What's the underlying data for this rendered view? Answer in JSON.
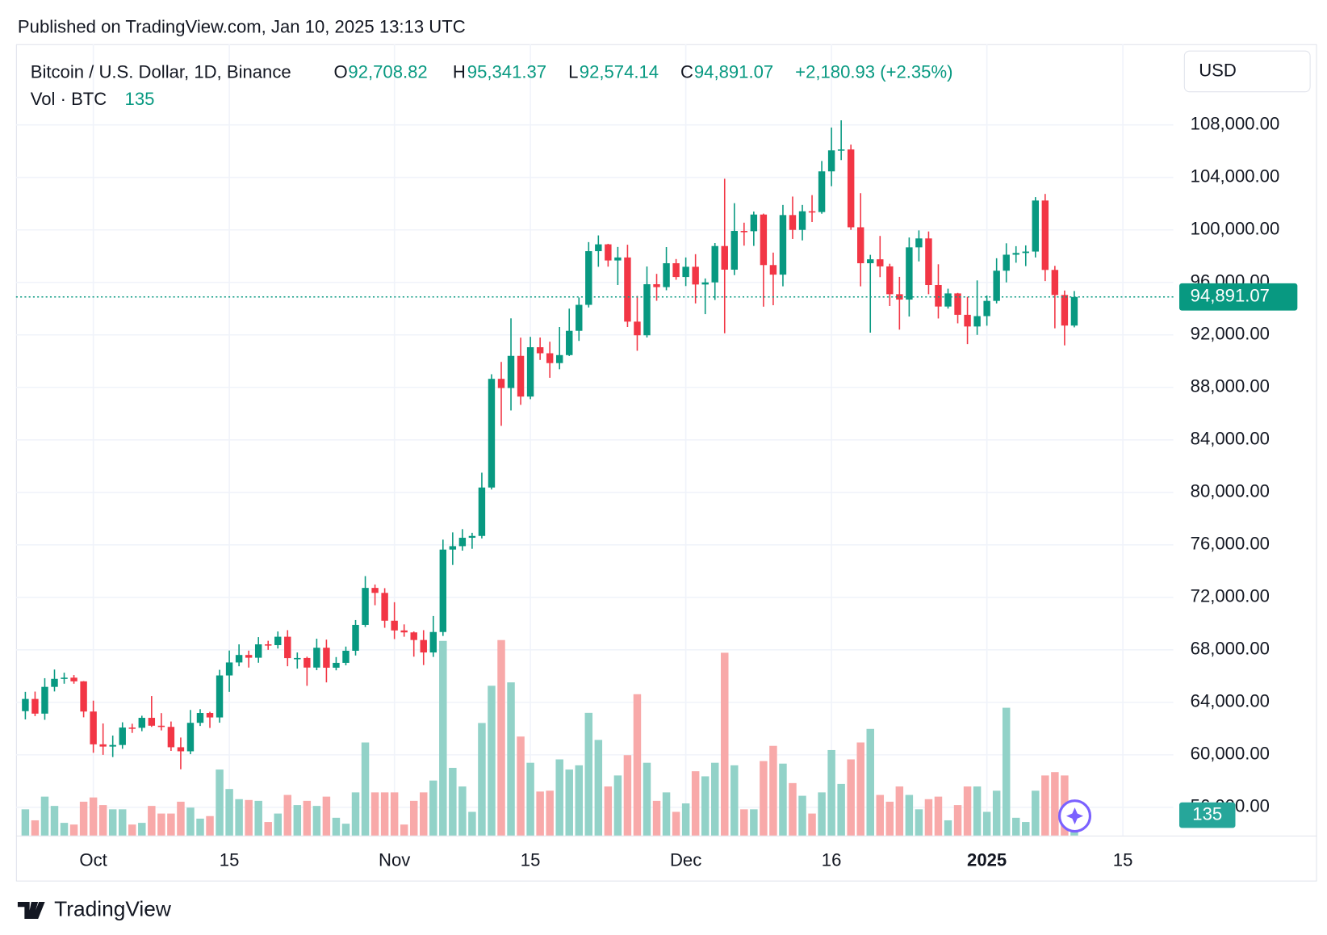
{
  "chart_data": {
    "type": "candlestick",
    "header": "Published on TradingView.com, Jan 10, 2025 13:13 UTC",
    "title": "Bitcoin / U.S. Dollar, 1D, Binance",
    "currency": "USD",
    "ohlc_legend": [
      {
        "key": "O",
        "value": "92,708.82"
      },
      {
        "key": "H",
        "value": "95,341.37"
      },
      {
        "key": "L",
        "value": "92,574.14"
      },
      {
        "key": "C",
        "value": "94,891.07"
      }
    ],
    "change": "+2,180.93 (+2.35%)",
    "up_color": "#089981",
    "down_color": "#f23645",
    "grid": true,
    "categories": [
      null,
      null,
      null,
      null,
      null,
      null,
      null,
      "Oct",
      null,
      null,
      null,
      null,
      null,
      null,
      null,
      null,
      null,
      null,
      null,
      null,
      null,
      "15",
      null,
      null,
      null,
      null,
      null,
      null,
      null,
      null,
      null,
      null,
      null,
      null,
      null,
      null,
      null,
      null,
      "Nov",
      null,
      null,
      null,
      null,
      null,
      null,
      null,
      null,
      null,
      null,
      null,
      null,
      null,
      "15",
      null,
      null,
      null,
      null,
      null,
      null,
      null,
      null,
      null,
      null,
      null,
      null,
      null,
      null,
      null,
      "Dec",
      null,
      null,
      null,
      null,
      null,
      null,
      null,
      null,
      null,
      null,
      null,
      null,
      null,
      null,
      "16",
      null,
      null,
      null,
      null,
      null,
      null,
      null,
      null,
      null,
      null,
      null,
      null,
      null,
      null,
      null,
      "2025",
      null,
      null,
      null,
      null,
      null,
      null,
      null,
      null,
      null,
      null,
      null,
      null,
      null,
      "15",
      null,
      null,
      null,
      null,
      null
    ],
    "open": [
      63330,
      64260,
      63140,
      65180,
      65790,
      65880,
      65600,
      63300,
      60800,
      60630,
      60750,
      62080,
      62060,
      62820,
      62220,
      62130,
      60580,
      60270,
      62440,
      63190,
      62850,
      66050,
      67040,
      67610,
      67400,
      68420,
      68360,
      69000,
      67370,
      67380,
      66650,
      68160,
      66640,
      67010,
      67930,
      69900,
      72720,
      72340,
      70220,
      69480,
      69330,
      68750,
      67800,
      69360,
      75640,
      75900,
      76540,
      76680,
      80370,
      88650,
      87950,
      90400,
      87300,
      91060,
      90600,
      89850,
      90460,
      92310,
      94290,
      98380,
      98900,
      97670,
      97900,
      93010,
      91970,
      95860,
      95640,
      97460,
      96410,
      97190,
      95840,
      96000,
      98770,
      96970,
      99920,
      99900,
      101170,
      97320,
      96590,
      101130,
      100000,
      101420,
      101360,
      104460,
      106060,
      106130,
      100200,
      97460,
      97760,
      97220,
      95100,
      94690,
      98670,
      99350,
      95800,
      94160,
      95160,
      93530,
      92640,
      93430,
      94590,
      96890,
      98110,
      98240,
      98350,
      102240,
      96950,
      95040,
      92708.82,
      null,
      null,
      null,
      null,
      null,
      null,
      null,
      null,
      null,
      null
    ],
    "high": [
      64800,
      64820,
      65840,
      66500,
      66260,
      66080,
      65620,
      64130,
      62390,
      61470,
      62480,
      62370,
      62980,
      64480,
      63180,
      62540,
      61320,
      63420,
      63480,
      63280,
      66480,
      67950,
      68420,
      67940,
      68970,
      68690,
      69400,
      69500,
      67800,
      67480,
      68850,
      68780,
      67450,
      68250,
      70270,
      73620,
      72980,
      72700,
      71630,
      69940,
      69400,
      69500,
      70580,
      76400,
      76950,
      77200,
      76920,
      81500,
      89000,
      89940,
      93260,
      91790,
      91850,
      91800,
      91480,
      92600,
      94000,
      94850,
      99070,
      99580,
      98940,
      98700,
      98870,
      94970,
      97210,
      96650,
      98690,
      97780,
      97900,
      98150,
      96300,
      99000,
      103900,
      102040,
      100550,
      101400,
      101240,
      98270,
      101900,
      102540,
      101900,
      102650,
      105250,
      107800,
      108350,
      106500,
      102800,
      98100,
      99540,
      97420,
      96420,
      99420,
      99960,
      99880,
      97380,
      95520,
      95200,
      94900,
      96150,
      95000,
      97840,
      98980,
      98760,
      98820,
      102500,
      102740,
      97260,
      95380,
      95341.37,
      null,
      null,
      null,
      null,
      null,
      null,
      null,
      null,
      null,
      null
    ],
    "low": [
      62700,
      62950,
      62670,
      64830,
      65420,
      65420,
      62860,
      60160,
      60000,
      59830,
      60460,
      61670,
      61800,
      62130,
      61860,
      60300,
      58900,
      60050,
      62200,
      62050,
      62450,
      64800,
      66750,
      66650,
      67020,
      68000,
      68100,
      66750,
      66570,
      65260,
      66450,
      65520,
      66440,
      66820,
      67570,
      69740,
      71400,
      69680,
      68820,
      69000,
      67480,
      66840,
      67460,
      69060,
      74470,
      75560,
      75700,
      76490,
      80220,
      85070,
      86240,
      86670,
      87100,
      90090,
      88730,
      89380,
      90390,
      91540,
      94090,
      97190,
      97200,
      95800,
      92600,
      90790,
      91800,
      94600,
      95400,
      96200,
      95720,
      94400,
      93580,
      94660,
      92120,
      96550,
      98800,
      98780,
      94150,
      94260,
      95700,
      99310,
      99200,
      100600,
      101230,
      103330,
      105320,
      100000,
      95700,
      92170,
      96400,
      94200,
      92400,
      93400,
      97600,
      95100,
      93250,
      94000,
      92880,
      91300,
      92000,
      92700,
      94400,
      96000,
      97500,
      97240,
      97900,
      96100,
      92500,
      91200,
      92574.14,
      null,
      null,
      null,
      null,
      null,
      null,
      null,
      null,
      null,
      null
    ],
    "close": [
      64260,
      63140,
      65180,
      65790,
      65880,
      65600,
      63300,
      60800,
      60630,
      60750,
      62080,
      62060,
      62820,
      62220,
      62130,
      60580,
      60270,
      62440,
      63190,
      62850,
      66050,
      67040,
      67610,
      67400,
      68420,
      68360,
      69000,
      67370,
      67380,
      66650,
      68160,
      66640,
      67010,
      67930,
      69900,
      72720,
      72340,
      70220,
      69480,
      69330,
      68750,
      67800,
      69360,
      75640,
      75900,
      76540,
      76680,
      80370,
      88650,
      87950,
      90400,
      87300,
      91060,
      90600,
      89850,
      90460,
      92310,
      94290,
      98380,
      98900,
      97670,
      97900,
      93010,
      91970,
      95860,
      95640,
      97460,
      96410,
      97190,
      95840,
      96000,
      98770,
      96970,
      99920,
      99900,
      101170,
      97320,
      96590,
      101130,
      100000,
      101420,
      101360,
      104460,
      106060,
      106130,
      100200,
      97460,
      97760,
      97220,
      95100,
      94690,
      98670,
      99350,
      95800,
      94160,
      95160,
      93530,
      92640,
      93430,
      94590,
      96890,
      98110,
      98240,
      98350,
      102240,
      96950,
      95040,
      92710,
      94891.07,
      null,
      null,
      null,
      null,
      null,
      null,
      null,
      null,
      null,
      null
    ],
    "volume": {
      "name": "Vol · BTC",
      "up_color": "#92d2c8",
      "down_color": "#f8a9a9",
      "values": [
        310,
        180,
        460,
        350,
        150,
        130,
        400,
        450,
        360,
        310,
        310,
        130,
        150,
        350,
        260,
        260,
        400,
        330,
        200,
        230,
        780,
        550,
        430,
        420,
        410,
        160,
        260,
        480,
        360,
        410,
        350,
        460,
        210,
        140,
        510,
        1100,
        510,
        510,
        510,
        130,
        410,
        510,
        650,
        2300,
        800,
        580,
        280,
        1330,
        1770,
        2310,
        1810,
        1170,
        860,
        520,
        530,
        900,
        780,
        830,
        1450,
        1130,
        580,
        710,
        950,
        1670,
        860,
        410,
        510,
        280,
        380,
        760,
        700,
        860,
        2160,
        830,
        310,
        310,
        880,
        1060,
        850,
        620,
        470,
        260,
        510,
        1010,
        610,
        900,
        1100,
        1260,
        480,
        400,
        580,
        480,
        310,
        430,
        460,
        180,
        360,
        580,
        580,
        280,
        530,
        1510,
        210,
        160,
        530,
        710,
        750,
        710,
        135,
        null,
        null,
        null,
        null,
        null,
        null,
        null,
        null,
        null,
        null
      ]
    },
    "ylim": [
      53850,
      114150
    ],
    "yticks": [
      {
        "value": 56000,
        "label": "56,000.00"
      },
      {
        "value": 60000,
        "label": "60,000.00"
      },
      {
        "value": 64000,
        "label": "64,000.00"
      },
      {
        "value": 68000,
        "label": "68,000.00"
      },
      {
        "value": 72000,
        "label": "72,000.00"
      },
      {
        "value": 76000,
        "label": "76,000.00"
      },
      {
        "value": 80000,
        "label": "80,000.00"
      },
      {
        "value": 84000,
        "label": "84,000.00"
      },
      {
        "value": 88000,
        "label": "88,000.00"
      },
      {
        "value": 92000,
        "label": "92,000.00"
      },
      {
        "value": 96000,
        "label": "96,000.00"
      },
      {
        "value": 100000,
        "label": "100,000.00"
      },
      {
        "value": 104000,
        "label": "104,000.00"
      },
      {
        "value": 108000,
        "label": "108,000.00"
      }
    ]
  },
  "footer": {
    "brand": "TradingView"
  }
}
